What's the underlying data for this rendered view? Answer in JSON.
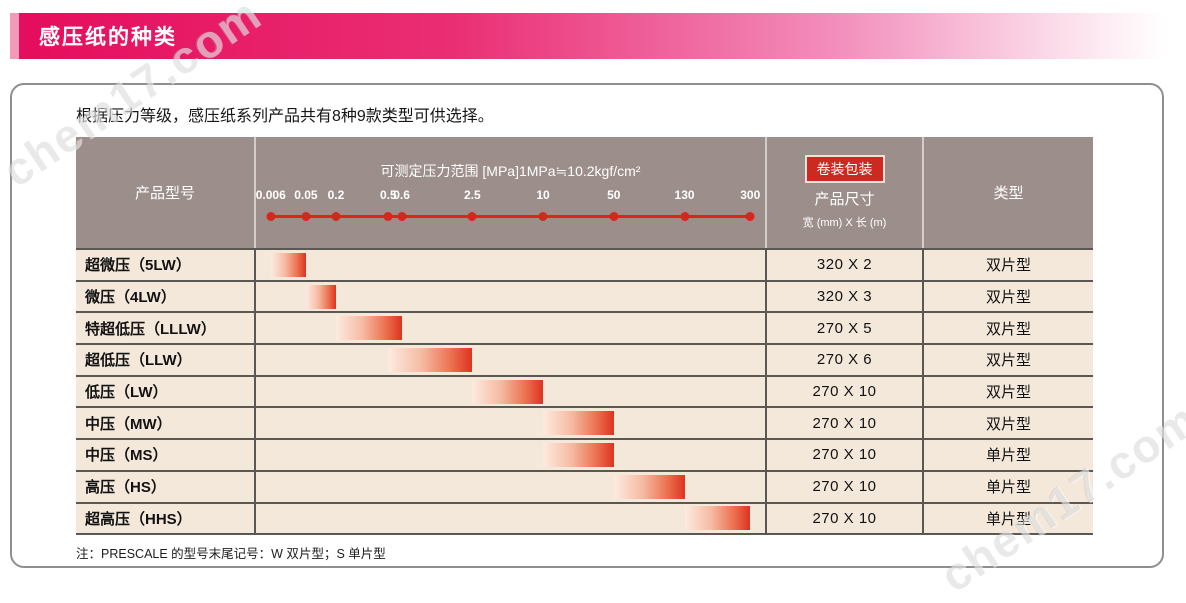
{
  "page": {
    "title": "感压纸的种类",
    "intro": "根据压力等级，感压纸系列产品共有8种9款类型可供选择。",
    "note": "注：PRESCALE 的型号末尾记号：W 双片型；S 单片型",
    "watermark": "chem17.com"
  },
  "colors": {
    "banner_pink": "#e50d5d",
    "banner_accent": "#f49ab6",
    "header_taupe": "#9c8e8b",
    "row_beige": "#f4e8db",
    "separator": "#5b5753",
    "scale_red": "#da251c",
    "badge_red": "#cc2921",
    "bar_red": "#dd3320"
  },
  "table": {
    "columns": {
      "model": "产品型号",
      "pressure_title": "可测定压力范围 [MPa]1MPa≒10.2kgf/cm²",
      "package_badge": "卷装包装",
      "size_title": "产品尺寸",
      "size_subtitle": "宽 (mm) X 长 (m)",
      "type_title": "类型"
    },
    "scale": {
      "ticks": [
        {
          "label": "0.006",
          "pos": 2.9
        },
        {
          "label": "0.05",
          "pos": 9.8
        },
        {
          "label": "0.2",
          "pos": 15.7
        },
        {
          "label": "0.5",
          "pos": 26.0
        },
        {
          "label": "0.6",
          "pos": 28.6
        },
        {
          "label": "2.5",
          "pos": 42.5
        },
        {
          "label": "10",
          "pos": 56.4
        },
        {
          "label": "50",
          "pos": 70.3
        },
        {
          "label": "130",
          "pos": 84.2
        },
        {
          "label": "300",
          "pos": 97.1
        }
      ]
    },
    "rows": [
      {
        "model": "超微压（5LW）",
        "range": [
          "0.006",
          "0.05"
        ],
        "size": "320 X 2",
        "type": "双片型"
      },
      {
        "model": "微压（4LW）",
        "range": [
          "0.05",
          "0.2"
        ],
        "size": "320 X 3",
        "type": "双片型"
      },
      {
        "model": "特超低压（LLLW）",
        "range": [
          "0.2",
          "0.6"
        ],
        "size": "270 X 5",
        "type": "双片型"
      },
      {
        "model": "超低压（LLW）",
        "range": [
          "0.5",
          "2.5"
        ],
        "size": "270 X 6",
        "type": "双片型"
      },
      {
        "model": "低压（LW）",
        "range": [
          "2.5",
          "10"
        ],
        "size": "270 X 10",
        "type": "双片型"
      },
      {
        "model": "中压（MW）",
        "range": [
          "10",
          "50"
        ],
        "size": "270 X 10",
        "type": "双片型"
      },
      {
        "model": "中压（MS）",
        "range": [
          "10",
          "50"
        ],
        "size": "270 X 10",
        "type": "单片型"
      },
      {
        "model": "高压（HS）",
        "range": [
          "50",
          "130"
        ],
        "size": "270 X 10",
        "type": "单片型"
      },
      {
        "model": "超高压（HHS）",
        "range": [
          "130",
          "300"
        ],
        "size": "270 X 10",
        "type": "单片型"
      }
    ]
  },
  "chart_data": {
    "type": "bar",
    "title": "可测定压力范围 [MPa]1MPa≒10.2kgf/cm²",
    "categories": [
      "超微压（5LW）",
      "微压（4LW）",
      "特超低压（LLLW）",
      "超低压（LLW）",
      "低压（LW）",
      "中压（MW）",
      "中压（MS）",
      "高压（HS）",
      "超高压（HHS）"
    ],
    "series": [
      {
        "name": "pressure_range_MPa",
        "values": [
          [
            0.006,
            0.05
          ],
          [
            0.05,
            0.2
          ],
          [
            0.2,
            0.6
          ],
          [
            0.5,
            2.5
          ],
          [
            2.5,
            10
          ],
          [
            10,
            50
          ],
          [
            10,
            50
          ],
          [
            50,
            130
          ],
          [
            130,
            300
          ]
        ]
      }
    ],
    "xlabel": "产品型号",
    "ylabel": "MPa",
    "axis_ticks": [
      0.006,
      0.05,
      0.2,
      0.5,
      0.6,
      2.5,
      10,
      50,
      130,
      300
    ],
    "ylim": [
      0.006,
      300
    ],
    "legend_position": "none",
    "grid": false
  }
}
